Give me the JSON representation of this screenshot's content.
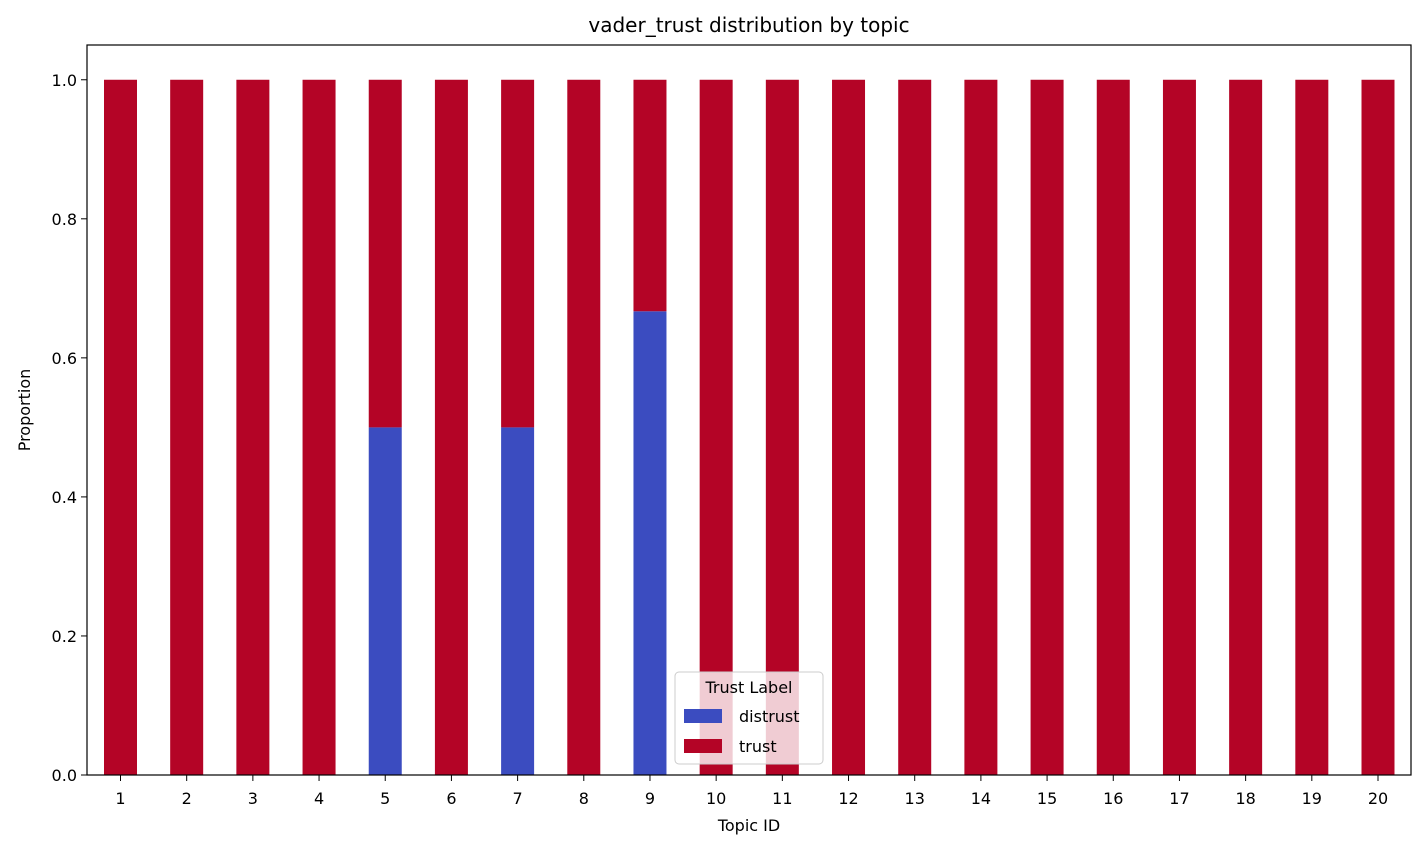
{
  "chart_data": {
    "type": "bar",
    "stacked": true,
    "title": "vader_trust distribution by topic",
    "xlabel": "Topic ID",
    "ylabel": "Proportion",
    "ylim": [
      0,
      1.05
    ],
    "yticks": [
      "0.0",
      "0.2",
      "0.4",
      "0.6",
      "0.8",
      "1.0"
    ],
    "categories": [
      "1",
      "2",
      "3",
      "4",
      "5",
      "6",
      "7",
      "8",
      "9",
      "10",
      "11",
      "12",
      "13",
      "14",
      "15",
      "16",
      "17",
      "18",
      "19",
      "20"
    ],
    "series": [
      {
        "name": "distrust",
        "color": "#3b4cc0",
        "values": [
          0,
          0,
          0,
          0,
          0.5,
          0,
          0.5,
          0,
          0.667,
          0,
          0,
          0,
          0,
          0,
          0,
          0,
          0,
          0,
          0,
          0
        ]
      },
      {
        "name": "trust",
        "color": "#b40426",
        "values": [
          1,
          1,
          1,
          1,
          0.5,
          1,
          0.5,
          1,
          0.333,
          1,
          1,
          1,
          1,
          1,
          1,
          1,
          1,
          1,
          1,
          1
        ]
      }
    ],
    "legend": {
      "title": "Trust Label",
      "placement": "lower-center"
    },
    "grid": false
  }
}
